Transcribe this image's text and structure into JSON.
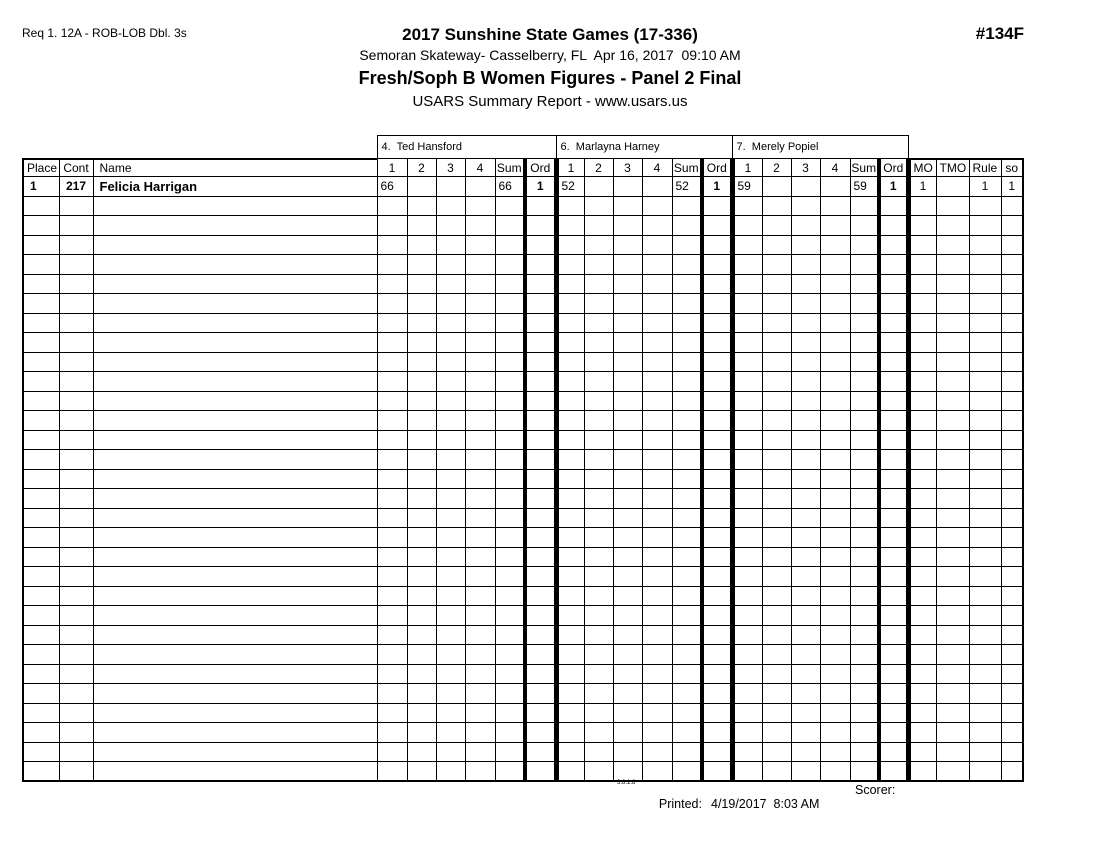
{
  "header": {
    "req_line": "Req 1. 12A - ROB-LOB Dbl. 3s",
    "title": "2017 Sunshine State Games (17-336)",
    "venue_line": "Semoran Skateway- Casselberry, FL  Apr 16, 2017  09:10 AM",
    "event_line": "Fresh/Soph B Women Figures - Panel 2 Final",
    "report_line": "USARS Summary Report - www.usars.us",
    "doc_number": "#134F"
  },
  "table": {
    "left_columns": [
      "Place",
      "Cont",
      "Name"
    ],
    "judges": [
      "4.  Ted Hansford",
      "6.  Marlayna Harney",
      "7.  Merely Popiel"
    ],
    "judge_columns": [
      "1",
      "2",
      "3",
      "4",
      "Sum",
      "Ord"
    ],
    "right_columns": [
      "MO",
      "TMO",
      "Rule",
      "so"
    ],
    "rows": [
      {
        "place": "1",
        "cont": "217",
        "name": "Felicia Harrigan",
        "scores": [
          [
            "66",
            "",
            "",
            "",
            "66",
            "1"
          ],
          [
            "52",
            "",
            "",
            "",
            "52",
            "1"
          ],
          [
            "59",
            "",
            "",
            "",
            "59",
            "1"
          ]
        ],
        "extras": [
          "1",
          "",
          "1",
          "1"
        ]
      }
    ],
    "empty_rows": 30
  },
  "footer": {
    "version": "3.8.1.8",
    "printed_label": "Printed:",
    "printed_value": "4/19/2017  8:03 AM",
    "scorer_label": "Scorer:"
  }
}
